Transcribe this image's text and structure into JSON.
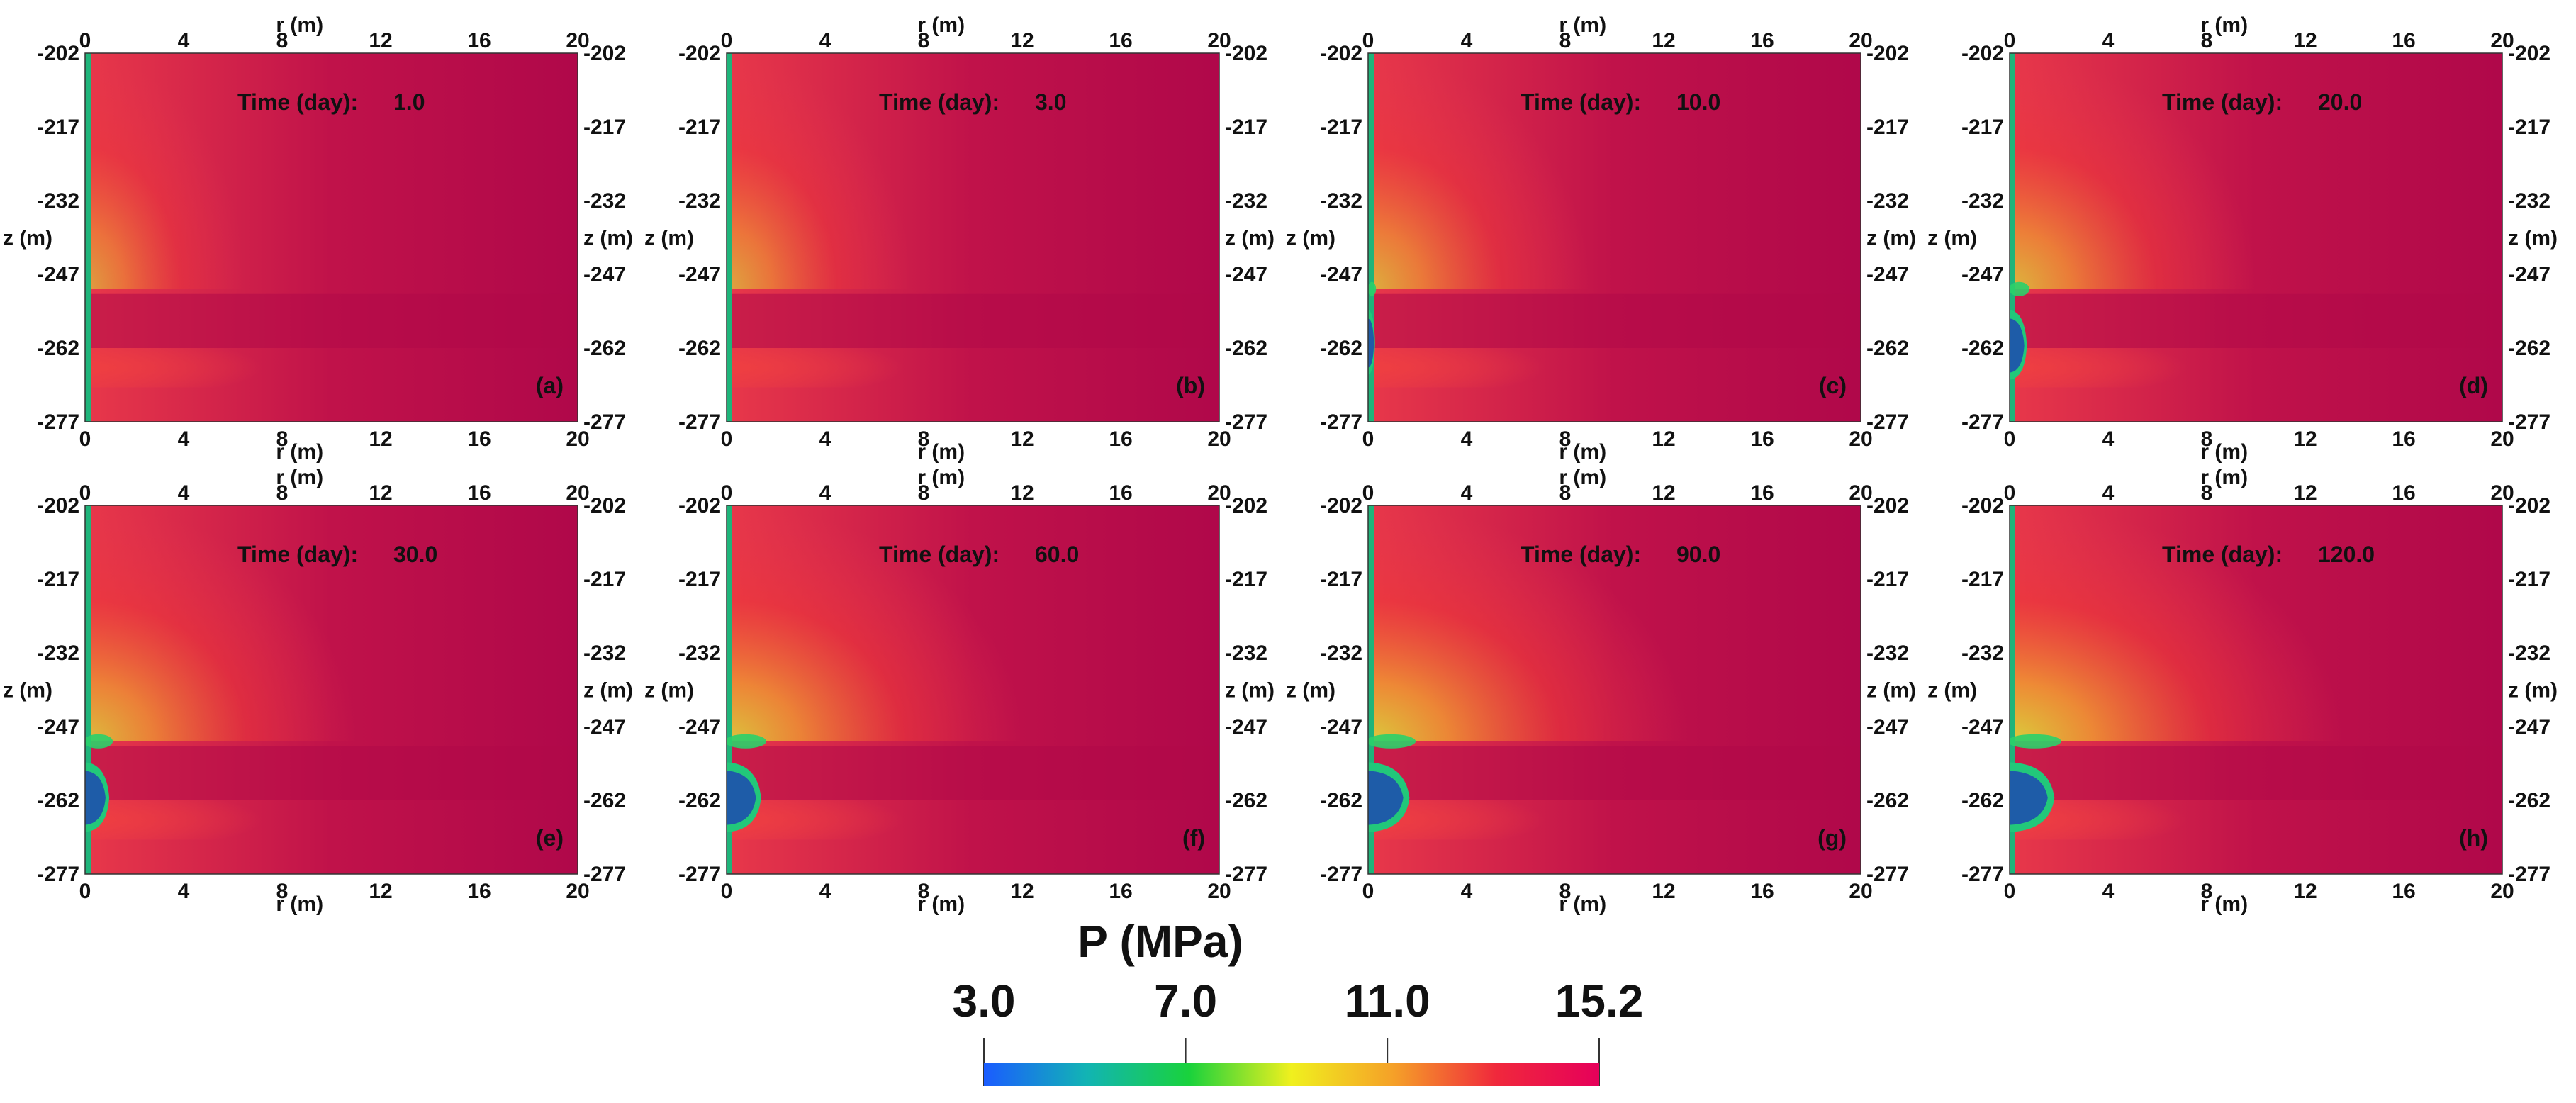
{
  "chart_data": {
    "type": "heatmap",
    "colorbar": {
      "title": "P (MPa)",
      "ticks": [
        "3.0",
        "7.0",
        "11.0",
        "15.2"
      ],
      "tick_values": [
        3.0,
        7.0,
        11.0,
        15.2
      ],
      "range": [
        3.0,
        15.2
      ],
      "colors": [
        "#1a5cff",
        "#12b4b4",
        "#19d23c",
        "#f0f01e",
        "#f5a028",
        "#f0283c",
        "#e6005a"
      ]
    },
    "x_axis": {
      "label": "r (m)",
      "range": [
        0,
        20
      ],
      "ticks": [
        "0",
        "4",
        "8",
        "12",
        "16",
        "20"
      ]
    },
    "y_axis": {
      "label": "z (m)",
      "range": [
        -277,
        -202
      ],
      "ticks": [
        "-202",
        "-217",
        "-232",
        "-247",
        "-262",
        "-277"
      ]
    },
    "time_label": "Time (day):",
    "panels": [
      {
        "letter": "(a)",
        "time": "1.0",
        "low_zone_z": [
          -266,
          -258
        ],
        "low_zone_r": 0.0,
        "plume_strength": 0.15
      },
      {
        "letter": "(b)",
        "time": "3.0",
        "low_zone_z": [
          -266,
          -258
        ],
        "low_zone_r": 0.0,
        "plume_strength": 0.25
      },
      {
        "letter": "(c)",
        "time": "10.0",
        "low_zone_z": [
          -266,
          -256
        ],
        "low_zone_r": 0.2,
        "plume_strength": 0.4
      },
      {
        "letter": "(d)",
        "time": "20.0",
        "low_zone_z": [
          -267,
          -256
        ],
        "low_zone_r": 0.5,
        "plume_strength": 0.5
      },
      {
        "letter": "(e)",
        "time": "30.0",
        "low_zone_z": [
          -267,
          -256
        ],
        "low_zone_r": 0.7,
        "plume_strength": 0.6
      },
      {
        "letter": "(f)",
        "time": "60.0",
        "low_zone_z": [
          -267,
          -256
        ],
        "low_zone_r": 1.0,
        "plume_strength": 0.7
      },
      {
        "letter": "(g)",
        "time": "90.0",
        "low_zone_z": [
          -267,
          -256
        ],
        "low_zone_r": 1.2,
        "plume_strength": 0.8
      },
      {
        "letter": "(h)",
        "time": "120.0",
        "low_zone_z": [
          -267,
          -256
        ],
        "low_zone_r": 1.3,
        "plume_strength": 0.85
      }
    ]
  }
}
